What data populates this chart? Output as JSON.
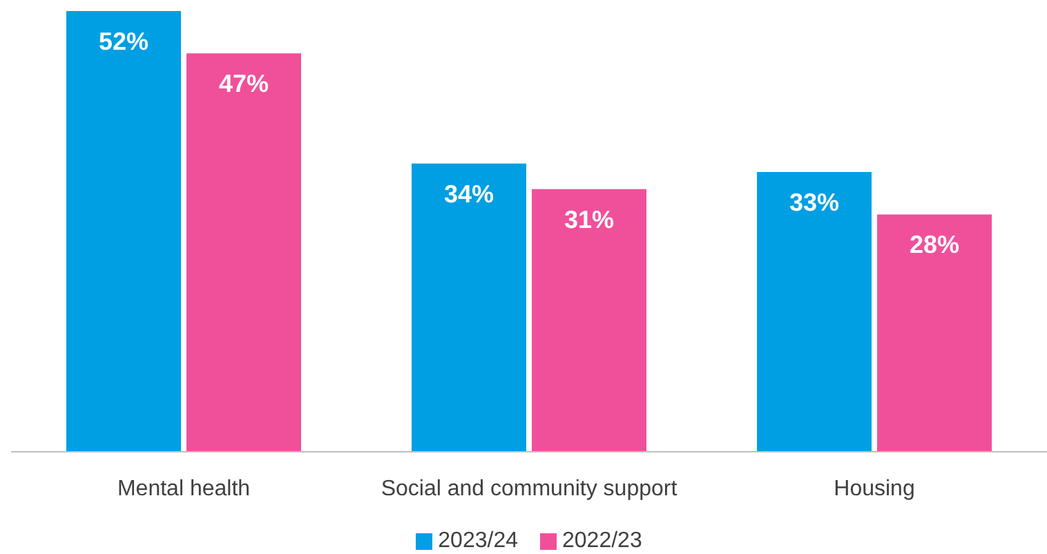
{
  "chart_data": {
    "type": "bar",
    "categories": [
      "Mental health",
      "Social and community support",
      "Housing"
    ],
    "series": [
      {
        "name": "2023/24",
        "color": "#009fe3",
        "values": [
          52,
          34,
          33
        ],
        "value_labels": [
          "52%",
          "34%",
          "33%"
        ]
      },
      {
        "name": "2022/23",
        "color": "#f0509a",
        "values": [
          47,
          31,
          28
        ],
        "value_labels": [
          "47%",
          "31%",
          "28%"
        ]
      }
    ],
    "grid": false,
    "legend": "bottom"
  }
}
